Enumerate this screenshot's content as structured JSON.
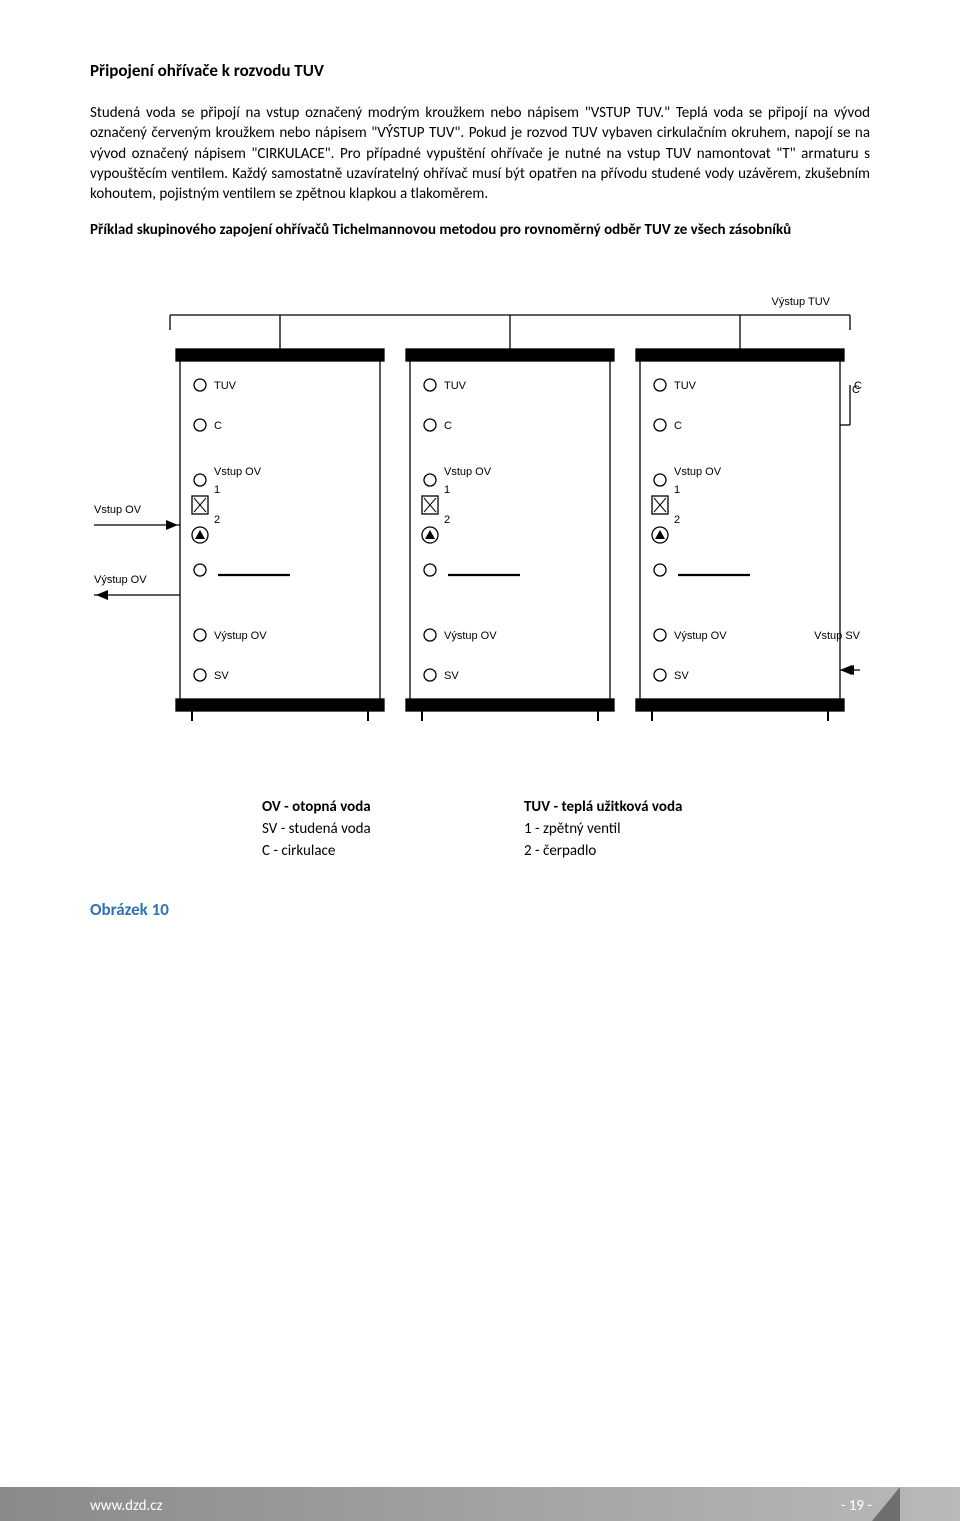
{
  "title": "Připojení ohřívače k rozvodu TUV",
  "para1": "Studená voda se připojí na vstup označený modrým kroužkem nebo nápisem \"VSTUP TUV.\" Teplá voda se připojí na vývod označený červeným kroužkem nebo nápisem \"VÝSTUP TUV\". Pokud je rozvod TUV vybaven cirkulačním okruhem, napojí se na vývod označený nápisem \"CIRKULACE\". Pro případné vypuštění ohřívače je nutné na vstup TUV namontovat \"T\" armaturu s vypouštěcím ventilem. Každý samostatně uzavíratelný ohřívač musí být opatřen na přívodu studené vody uzávěrem, zkušebním kohoutem, pojistným ventilem se zpětnou klapkou a tlakoměrem.",
  "subhead": "Příklad skupinového zapojení ohřívačů Tichelmannovou metodou pro rovnoměrný odběr TUV ze všech zásobníků",
  "diagram": {
    "labels": {
      "vystup_tuv": "Výstup TUV",
      "tuv": "TUV",
      "c": "C",
      "vstup_ov": "Vstup OV",
      "one": "1",
      "two": "2",
      "vstup_ov_left": "Vstup OV",
      "vystup_ov_left": "Výstup OV",
      "vystup_ov": "Výstup OV",
      "vstup_sv": "Vstup SV",
      "sv": "SV"
    },
    "tank_x": [
      90,
      320,
      550
    ],
    "tank_w": 200,
    "stroke": "#000000",
    "fontsize": 11
  },
  "legend": {
    "l1a": "OV - otopná voda",
    "l1b": "TUV - teplá užitková voda",
    "l2a": "SV - studená voda",
    "l2b": "1 - zpětný ventil",
    "l3a": "C - cirkulace",
    "l3b": "2 - čerpadlo"
  },
  "figure_label": "Obrázek 10",
  "footer": {
    "url": "www.dzd.cz",
    "page": "- 19 -"
  }
}
